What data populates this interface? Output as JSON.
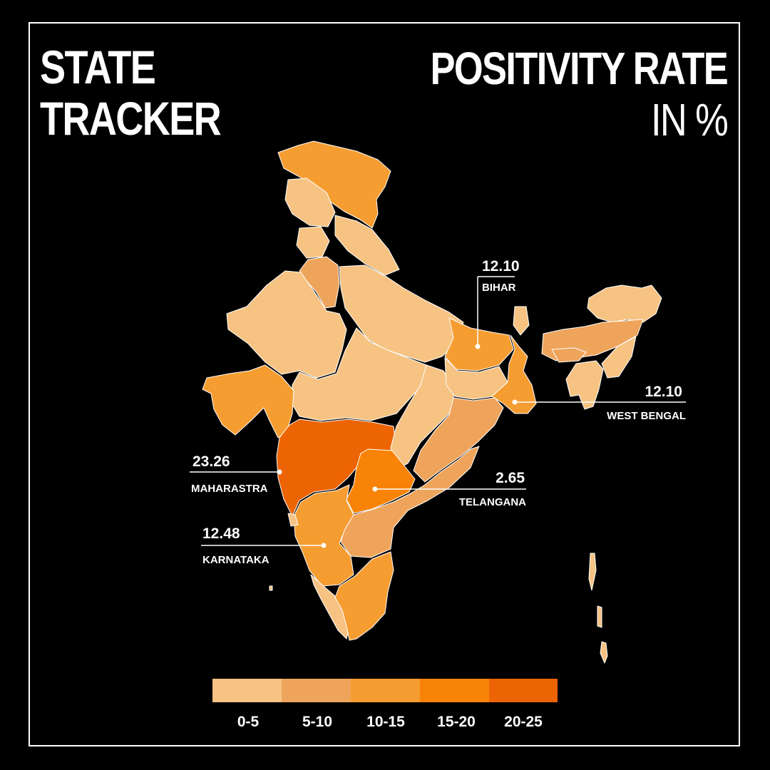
{
  "title": {
    "line1": "STATE",
    "line2": "TRACKER"
  },
  "subtitle": {
    "line1": "POSITIVITY RATE",
    "line2": "IN %"
  },
  "colors": {
    "background": "#000000",
    "bin_0_5": "#f6c383",
    "bin_5_10": "#efa45b",
    "bin_10_15": "#f59d31",
    "bin_15_20": "#f98306",
    "bin_20_25": "#ec6404",
    "border": "#ffffff"
  },
  "callouts": [
    {
      "id": "bihar",
      "value": "12.10",
      "name": "BIHAR"
    },
    {
      "id": "west-bengal",
      "value": "12.10",
      "name": "WEST BENGAL"
    },
    {
      "id": "maharastra",
      "value": "23.26",
      "name": "MAHARASTRA"
    },
    {
      "id": "telangana",
      "value": "2.65",
      "name": "TELANGANA"
    },
    {
      "id": "karnataka",
      "value": "12.48",
      "name": "KARNATAKA"
    }
  ],
  "legend": {
    "bins": [
      {
        "label": "0-5",
        "color": "#f6c383"
      },
      {
        "label": "5-10",
        "color": "#efa45b"
      },
      {
        "label": "10-15",
        "color": "#f59d31"
      },
      {
        "label": "15-20",
        "color": "#f98306"
      },
      {
        "label": "20-25",
        "color": "#ec6404"
      }
    ]
  }
}
